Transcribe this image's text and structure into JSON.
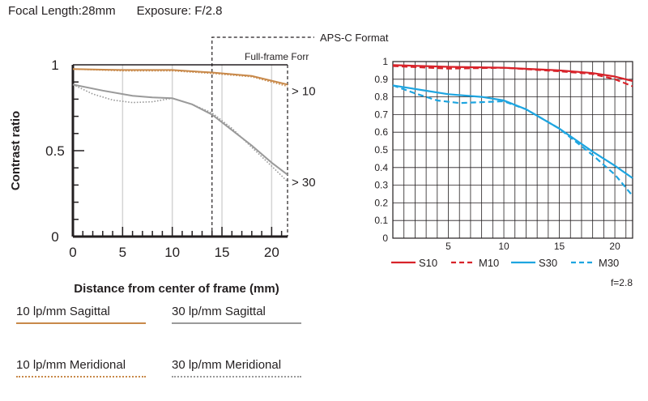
{
  "header": {
    "focal_length": "Focal Length:28mm",
    "exposure": "Exposure: F/2.8"
  },
  "chart_data": [
    {
      "type": "line",
      "ylabel": "Contrast ratio",
      "xlabel": "Distance from center of frame (mm)",
      "x_ticks": [
        "0",
        "5",
        "10",
        "15",
        "20"
      ],
      "y_ticks": [
        "0",
        "0.5",
        "1"
      ],
      "xlim": [
        0,
        21.6
      ],
      "ylim": [
        0,
        1
      ],
      "grid": true,
      "region_labels": {
        "apsc": "APS-C Format",
        "fullframe": "Full-frame Forr"
      },
      "region_bounds": {
        "apsc_x": 14,
        "fullframe_x": 21.6
      },
      "annotations": [
        {
          "text": "> 10",
          "for_y": 0.88
        },
        {
          "text": "> 30",
          "for_y": 0.35
        }
      ],
      "colors": {
        "lp10": "#c8894a",
        "lp30": "#9a9a9a"
      },
      "legend": {
        "s10": "10 lp/mm Sagittal",
        "s30": "30 lp/mm Sagittal",
        "m10": "10 lp/mm Meridional",
        "m30": "30 lp/mm Meridional"
      },
      "series": [
        {
          "id": "s10",
          "name": "10 lp/mm Sagittal",
          "style": "solid",
          "color": "#c8894a",
          "points": [
            [
              0,
              0.975
            ],
            [
              5,
              0.97
            ],
            [
              10,
              0.97
            ],
            [
              14,
              0.955
            ],
            [
              18,
              0.935
            ],
            [
              21.6,
              0.885
            ]
          ]
        },
        {
          "id": "m10",
          "name": "10 lp/mm Meridional",
          "style": "dotted",
          "color": "#c8894a",
          "points": [
            [
              0,
              0.975
            ],
            [
              5,
              0.965
            ],
            [
              10,
              0.965
            ],
            [
              14,
              0.95
            ],
            [
              18,
              0.93
            ],
            [
              21.6,
              0.875
            ]
          ]
        },
        {
          "id": "s30",
          "name": "30 lp/mm Sagittal",
          "style": "solid",
          "color": "#9a9a9a",
          "points": [
            [
              0,
              0.885
            ],
            [
              3,
              0.85
            ],
            [
              6,
              0.82
            ],
            [
              8,
              0.81
            ],
            [
              10,
              0.805
            ],
            [
              12,
              0.77
            ],
            [
              14,
              0.71
            ],
            [
              16,
              0.62
            ],
            [
              18,
              0.53
            ],
            [
              20,
              0.43
            ],
            [
              21.6,
              0.36
            ]
          ]
        },
        {
          "id": "m30",
          "name": "30 lp/mm Meridional",
          "style": "dotted",
          "color": "#9a9a9a",
          "points": [
            [
              0,
              0.885
            ],
            [
              2,
              0.83
            ],
            [
              4,
              0.795
            ],
            [
              6,
              0.78
            ],
            [
              8,
              0.785
            ],
            [
              10,
              0.805
            ],
            [
              12,
              0.77
            ],
            [
              14,
              0.72
            ],
            [
              16,
              0.63
            ],
            [
              18,
              0.52
            ],
            [
              20,
              0.41
            ],
            [
              21.6,
              0.32
            ]
          ]
        }
      ]
    },
    {
      "type": "line",
      "x_ticks": [
        "5",
        "10",
        "15",
        "20"
      ],
      "y_ticks": [
        "0",
        "0.1",
        "0.2",
        "0.3",
        "0.4",
        "0.5",
        "0.6",
        "0.7",
        "0.8",
        "0.9",
        "1"
      ],
      "xlim": [
        0,
        21.6
      ],
      "ylim": [
        0,
        1
      ],
      "grid": true,
      "footnote": "f=2.8",
      "colors": {
        "red": "#d8232a",
        "blue": "#1ea5e0"
      },
      "legend": {
        "s10": "S10",
        "m10": "M10",
        "s30": "S30",
        "m30": "M30"
      },
      "series": [
        {
          "id": "s10",
          "name": "S10",
          "style": "solid",
          "color": "#d8232a",
          "points": [
            [
              0,
              0.98
            ],
            [
              5,
              0.97
            ],
            [
              10,
              0.965
            ],
            [
              15,
              0.95
            ],
            [
              18,
              0.935
            ],
            [
              20,
              0.915
            ],
            [
              21.6,
              0.89
            ]
          ]
        },
        {
          "id": "m10",
          "name": "M10",
          "style": "dashed",
          "color": "#d8232a",
          "points": [
            [
              0,
              0.975
            ],
            [
              5,
              0.96
            ],
            [
              10,
              0.965
            ],
            [
              15,
              0.945
            ],
            [
              18,
              0.93
            ],
            [
              20,
              0.9
            ],
            [
              21.6,
              0.86
            ]
          ]
        },
        {
          "id": "s30",
          "name": "S30",
          "style": "solid",
          "color": "#1ea5e0",
          "points": [
            [
              0,
              0.865
            ],
            [
              3,
              0.835
            ],
            [
              5,
              0.815
            ],
            [
              8,
              0.8
            ],
            [
              10,
              0.78
            ],
            [
              12,
              0.73
            ],
            [
              15,
              0.62
            ],
            [
              18,
              0.49
            ],
            [
              20,
              0.41
            ],
            [
              21.6,
              0.34
            ]
          ]
        },
        {
          "id": "m30",
          "name": "M30",
          "style": "dashed",
          "color": "#1ea5e0",
          "points": [
            [
              0,
              0.865
            ],
            [
              2,
              0.82
            ],
            [
              4,
              0.78
            ],
            [
              6,
              0.765
            ],
            [
              8,
              0.77
            ],
            [
              10,
              0.775
            ],
            [
              12,
              0.73
            ],
            [
              15,
              0.62
            ],
            [
              18,
              0.47
            ],
            [
              20,
              0.36
            ],
            [
              21.6,
              0.24
            ]
          ]
        }
      ]
    }
  ]
}
